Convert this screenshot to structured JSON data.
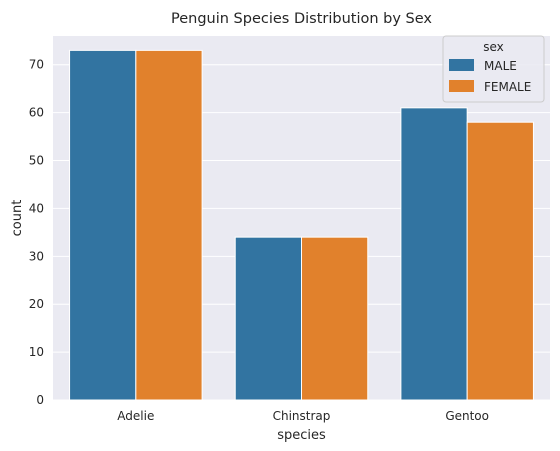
{
  "chart_data": {
    "type": "bar",
    "title": "Penguin Species Distribution by Sex",
    "xlabel": "species",
    "ylabel": "count",
    "categories": [
      "Adelie",
      "Chinstrap",
      "Gentoo"
    ],
    "series": [
      {
        "name": "MALE",
        "values": [
          73,
          34,
          61
        ],
        "color": "#3274a1"
      },
      {
        "name": "FEMALE",
        "values": [
          73,
          34,
          58
        ],
        "color": "#e1812c"
      }
    ],
    "ylim": [
      0,
      76
    ],
    "yticks": [
      0,
      10,
      20,
      30,
      40,
      50,
      60,
      70
    ],
    "grid": true,
    "background": "#eaeaf2",
    "legend": {
      "title": "sex",
      "placement": "top-right"
    }
  }
}
